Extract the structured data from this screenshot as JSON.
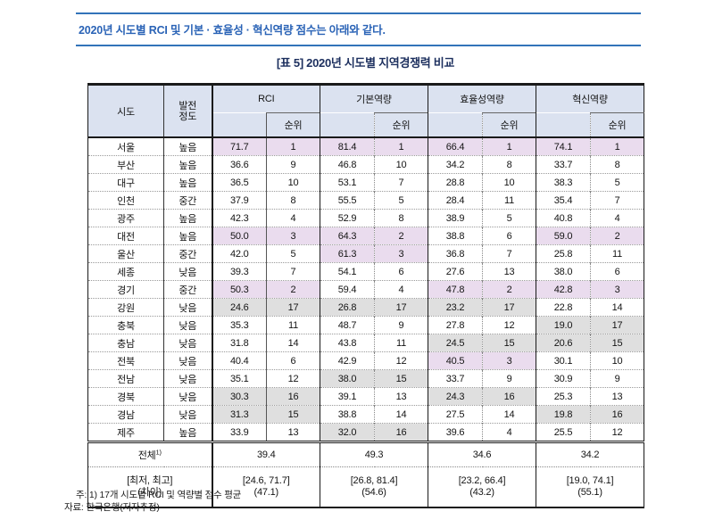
{
  "page": {
    "intro_text": "2020년 시도별 RCI 및 기본 · 효율성 · 혁신역량 점수는 아래와 같다.",
    "table_title": "[표 5] 2020년 시도별 지역경쟁력 비교",
    "note": "주: 1) 17개 시도별 RCI 및 역량별 점수 평균",
    "source": "자료: 한국은행(저자추정)"
  },
  "colors": {
    "accent_blue": "#2a63b6",
    "line_blue": "#3273b9",
    "title_navy": "#1c2f5e",
    "header_bg": "#dbe2f0",
    "hl_top": "#eadcee",
    "hl_bottom": "#dfdfdf"
  },
  "table": {
    "headers": {
      "region": "시도",
      "dev_line1": "발전",
      "dev_line2": "정도",
      "groups": [
        "RCI",
        "기본역량",
        "효율성역량",
        "혁신역량"
      ],
      "rank": "순위"
    },
    "highlight": {
      "top_max_rank": 3,
      "bottom_min_rank": 15
    },
    "rows": [
      {
        "region": "서울",
        "dev": "높음",
        "rci": "71.7",
        "rci_rank": 1,
        "basic": "81.4",
        "basic_rank": 1,
        "eff": "66.4",
        "eff_rank": 1,
        "innov": "74.1",
        "innov_rank": 1
      },
      {
        "region": "부산",
        "dev": "높음",
        "rci": "36.6",
        "rci_rank": 9,
        "basic": "46.8",
        "basic_rank": 10,
        "eff": "34.2",
        "eff_rank": 8,
        "innov": "33.7",
        "innov_rank": 8
      },
      {
        "region": "대구",
        "dev": "높음",
        "rci": "36.5",
        "rci_rank": 10,
        "basic": "53.1",
        "basic_rank": 7,
        "eff": "28.8",
        "eff_rank": 10,
        "innov": "38.3",
        "innov_rank": 5
      },
      {
        "region": "인천",
        "dev": "중간",
        "rci": "37.9",
        "rci_rank": 8,
        "basic": "55.5",
        "basic_rank": 5,
        "eff": "28.4",
        "eff_rank": 11,
        "innov": "35.4",
        "innov_rank": 7
      },
      {
        "region": "광주",
        "dev": "높음",
        "rci": "42.3",
        "rci_rank": 4,
        "basic": "52.9",
        "basic_rank": 8,
        "eff": "38.9",
        "eff_rank": 5,
        "innov": "40.8",
        "innov_rank": 4
      },
      {
        "region": "대전",
        "dev": "높음",
        "rci": "50.0",
        "rci_rank": 3,
        "basic": "64.3",
        "basic_rank": 2,
        "eff": "38.8",
        "eff_rank": 6,
        "innov": "59.0",
        "innov_rank": 2
      },
      {
        "region": "울산",
        "dev": "중간",
        "rci": "42.0",
        "rci_rank": 5,
        "basic": "61.3",
        "basic_rank": 3,
        "eff": "36.8",
        "eff_rank": 7,
        "innov": "25.8",
        "innov_rank": 11
      },
      {
        "region": "세종",
        "dev": "낮음",
        "rci": "39.3",
        "rci_rank": 7,
        "basic": "54.1",
        "basic_rank": 6,
        "eff": "27.6",
        "eff_rank": 13,
        "innov": "38.0",
        "innov_rank": 6
      },
      {
        "region": "경기",
        "dev": "중간",
        "rci": "50.3",
        "rci_rank": 2,
        "basic": "59.4",
        "basic_rank": 4,
        "eff": "47.8",
        "eff_rank": 2,
        "innov": "42.8",
        "innov_rank": 3
      },
      {
        "region": "강원",
        "dev": "낮음",
        "rci": "24.6",
        "rci_rank": 17,
        "basic": "26.8",
        "basic_rank": 17,
        "eff": "23.2",
        "eff_rank": 17,
        "innov": "22.8",
        "innov_rank": 14
      },
      {
        "region": "충북",
        "dev": "낮음",
        "rci": "35.3",
        "rci_rank": 11,
        "basic": "48.7",
        "basic_rank": 9,
        "eff": "27.8",
        "eff_rank": 12,
        "innov": "19.0",
        "innov_rank": 17
      },
      {
        "region": "충남",
        "dev": "낮음",
        "rci": "31.8",
        "rci_rank": 14,
        "basic": "43.8",
        "basic_rank": 11,
        "eff": "24.5",
        "eff_rank": 15,
        "innov": "20.6",
        "innov_rank": 15
      },
      {
        "region": "전북",
        "dev": "낮음",
        "rci": "40.4",
        "rci_rank": 6,
        "basic": "42.9",
        "basic_rank": 12,
        "eff": "40.5",
        "eff_rank": 3,
        "innov": "30.1",
        "innov_rank": 10
      },
      {
        "region": "전남",
        "dev": "낮음",
        "rci": "35.1",
        "rci_rank": 12,
        "basic": "38.0",
        "basic_rank": 15,
        "eff": "33.7",
        "eff_rank": 9,
        "innov": "30.9",
        "innov_rank": 9
      },
      {
        "region": "경북",
        "dev": "낮음",
        "rci": "30.3",
        "rci_rank": 16,
        "basic": "39.1",
        "basic_rank": 13,
        "eff": "24.3",
        "eff_rank": 16,
        "innov": "25.3",
        "innov_rank": 13
      },
      {
        "region": "경남",
        "dev": "낮음",
        "rci": "31.3",
        "rci_rank": 15,
        "basic": "38.8",
        "basic_rank": 14,
        "eff": "27.5",
        "eff_rank": 14,
        "innov": "19.8",
        "innov_rank": 16
      },
      {
        "region": "제주",
        "dev": "높음",
        "rci": "33.9",
        "rci_rank": 13,
        "basic": "32.0",
        "basic_rank": 16,
        "eff": "39.6",
        "eff_rank": 4,
        "innov": "25.5",
        "innov_rank": 12
      }
    ],
    "summary": {
      "total_label": "전체",
      "total_sup": "1)",
      "totals": [
        "39.4",
        "49.3",
        "34.6",
        "34.2"
      ],
      "range_label_line1": "[최저, 최고]",
      "range_label_line2": "(차이)",
      "ranges": [
        {
          "range": "[24.6, 71.7]",
          "diff": "(47.1)"
        },
        {
          "range": "[26.8, 81.4]",
          "diff": "(54.6)"
        },
        {
          "range": "[23.2, 66.4]",
          "diff": "(43.2)"
        },
        {
          "range": "[19.0, 74.1]",
          "diff": "(55.1)"
        }
      ]
    }
  }
}
